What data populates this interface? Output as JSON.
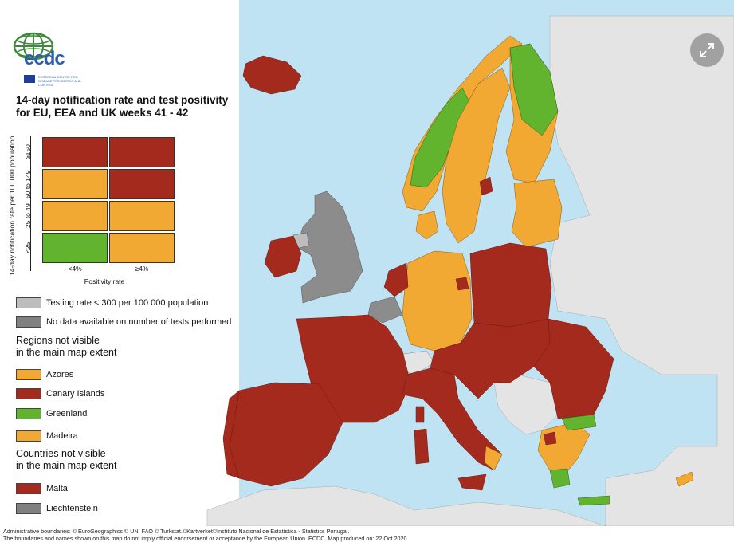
{
  "logo": {
    "name": "ECDC",
    "text": "ecdc",
    "subtext": "EUROPEAN CENTRE FOR DISEASE PREVENTION AND CONTROL"
  },
  "title": {
    "line1": "14-day notification rate and test positivity",
    "line2": "for EU, EEA and UK weeks 41 - 42"
  },
  "matrix": {
    "y_axis_label": "14-day notification rate per 100 000 population",
    "x_axis_label": "Positivity rate",
    "rows": [
      "≥150",
      "50 to 149",
      "25 to 49",
      "<25"
    ],
    "cols": [
      "<4%",
      "≥4%"
    ],
    "cells": [
      [
        "#a52a1e",
        "#a52a1e"
      ],
      [
        "#f2a933",
        "#a52a1e"
      ],
      [
        "#f2a933",
        "#f2a933"
      ],
      [
        "#62b42f",
        "#f2a933"
      ]
    ]
  },
  "legend": {
    "testing_rate": "Testing rate < 300 per 100 000 population",
    "no_data": "No data available on number of tests performed",
    "regions_heading_1": "Regions not visible",
    "regions_heading_2": "in the main map extent",
    "regions": [
      {
        "label": "Azores",
        "color": "#f2a933"
      },
      {
        "label": "Canary Islands",
        "color": "#a52a1e"
      },
      {
        "label": "Greenland",
        "color": "#62b42f"
      },
      {
        "label": "Madeira",
        "color": "#f2a933"
      }
    ],
    "countries_heading_1": "Countries not visible",
    "countries_heading_2": "in the main map extent",
    "countries": [
      {
        "label": "Malta",
        "color": "#a52a1e"
      },
      {
        "label": "Liechtenstein",
        "color": "#808080"
      }
    ]
  },
  "colors": {
    "sea": "#bfe3f2",
    "non_eu": "#e4e4e4",
    "red": "#a52a1e",
    "orange": "#f2a933",
    "green": "#62b42f",
    "grey_light": "#bdbdbd",
    "grey_dark": "#808080"
  },
  "expand_icon": "expand-arrows-icon",
  "footer": {
    "line1": "Administrative boundaries: © EuroGeographics © UN–FAO © Turkstat.©Kartverket©Instituto Nacional de Estatística - Statistics Portugal.",
    "line2": "The boundaries and names shown on this map do not imply official endorsement or acceptance by the European Union. ECDC. Map produced on: 22 Oct 2020"
  }
}
